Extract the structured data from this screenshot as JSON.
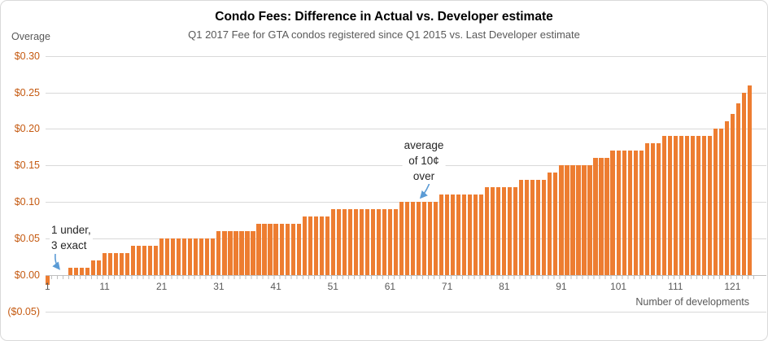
{
  "title": "Condo Fees: Difference in Actual vs. Developer estimate",
  "subtitle": "Q1 2017 Fee for GTA condos registered since Q1 2015 vs. Last Developer estimate",
  "y_axis": {
    "label": "Overage"
  },
  "x_axis": {
    "label": "Number of developments"
  },
  "annotations": {
    "under_exact": {
      "lines": [
        "1 under,",
        "3 exact"
      ]
    },
    "average": {
      "lines": [
        "average",
        "of 10¢",
        "over"
      ]
    }
  },
  "colors": {
    "bar": "#ed7d31",
    "y_label": "#c55a11",
    "axis_text": "#595959",
    "grid": "#d9d9d9",
    "axis_line": "#bfbfbf",
    "arrow": "#5b9bd5",
    "title": "#000000",
    "subtitle": "#595959",
    "annotation": "#262626",
    "border": "#d9d9d9"
  },
  "chart_data": {
    "type": "bar",
    "title": "Condo Fees: Difference in Actual vs. Developer estimate",
    "subtitle": "Q1 2017 Fee for GTA condos registered since Q1 2015 vs. Last Developer estimate",
    "xlabel": "Number of developments",
    "ylabel": "Overage",
    "ylim": [
      -0.05,
      0.3
    ],
    "grid": true,
    "x_ticks": [
      1,
      11,
      21,
      31,
      41,
      51,
      61,
      71,
      81,
      91,
      101,
      111,
      121
    ],
    "y_ticks": [
      {
        "label": "$0.30",
        "value": 0.3
      },
      {
        "label": "$0.25",
        "value": 0.25
      },
      {
        "label": "$0.20",
        "value": 0.2
      },
      {
        "label": "$0.15",
        "value": 0.15
      },
      {
        "label": "$0.10",
        "value": 0.1
      },
      {
        "label": "$0.05",
        "value": 0.05
      },
      {
        "label": "$0.00",
        "value": 0.0
      },
      {
        "label": "($0.05)",
        "value": -0.05
      }
    ],
    "values": [
      -0.012,
      0,
      0,
      0,
      0.01,
      0.01,
      0.01,
      0.01,
      0.02,
      0.02,
      0.03,
      0.03,
      0.03,
      0.03,
      0.03,
      0.04,
      0.04,
      0.04,
      0.04,
      0.04,
      0.05,
      0.05,
      0.05,
      0.05,
      0.05,
      0.05,
      0.05,
      0.05,
      0.05,
      0.05,
      0.06,
      0.06,
      0.06,
      0.06,
      0.06,
      0.06,
      0.06,
      0.07,
      0.07,
      0.07,
      0.07,
      0.07,
      0.07,
      0.07,
      0.07,
      0.08,
      0.08,
      0.08,
      0.08,
      0.08,
      0.09,
      0.09,
      0.09,
      0.09,
      0.09,
      0.09,
      0.09,
      0.09,
      0.09,
      0.09,
      0.09,
      0.09,
      0.1,
      0.1,
      0.1,
      0.1,
      0.1,
      0.1,
      0.1,
      0.11,
      0.11,
      0.11,
      0.11,
      0.11,
      0.11,
      0.11,
      0.11,
      0.12,
      0.12,
      0.12,
      0.12,
      0.12,
      0.12,
      0.13,
      0.13,
      0.13,
      0.13,
      0.13,
      0.14,
      0.14,
      0.15,
      0.15,
      0.15,
      0.15,
      0.15,
      0.15,
      0.16,
      0.16,
      0.16,
      0.17,
      0.17,
      0.17,
      0.17,
      0.17,
      0.17,
      0.18,
      0.18,
      0.18,
      0.19,
      0.19,
      0.19,
      0.19,
      0.19,
      0.19,
      0.19,
      0.19,
      0.19,
      0.2,
      0.2,
      0.21,
      0.22,
      0.235,
      0.25,
      0.26
    ],
    "annotations": [
      "1 under, 3 exact",
      "average of 10¢ over"
    ]
  }
}
